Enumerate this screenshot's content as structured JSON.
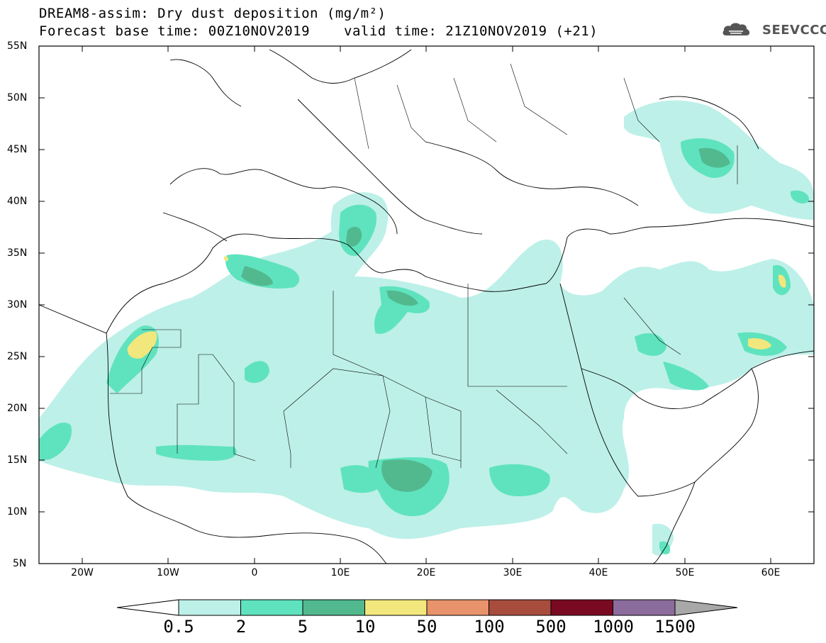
{
  "title": {
    "line1": "DREAM8-assim: Dry dust deposition (mg/m²)",
    "line2": "Forecast base time: 00Z10NOV2019",
    "valid": "valid time: 21Z10NOV2019 (+21)"
  },
  "logo": {
    "text": "SEEVCCC",
    "icon": "cloud-icon"
  },
  "map": {
    "lat_labels": [
      "55N",
      "50N",
      "45N",
      "40N",
      "35N",
      "30N",
      "25N",
      "20N",
      "15N",
      "10N",
      "5N"
    ],
    "lon_labels": [
      "20W",
      "10W",
      "0",
      "10E",
      "20E",
      "30E",
      "40E",
      "50E",
      "60E"
    ]
  },
  "legend": {
    "labels": [
      "0.5",
      "2",
      "5",
      "10",
      "50",
      "100",
      "500",
      "1000",
      "1500"
    ],
    "colors": [
      "#ffffff",
      "#bdf0e8",
      "#5fe3be",
      "#52b98f",
      "#f2e77c",
      "#e8936b",
      "#a84c3e",
      "#7a0a22",
      "#8c6c9c",
      "#a8a8a8"
    ]
  }
}
